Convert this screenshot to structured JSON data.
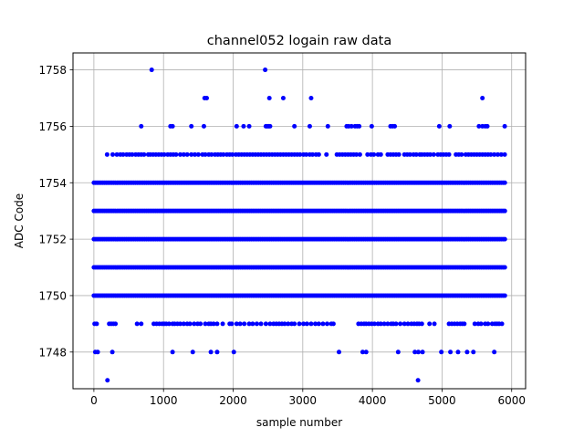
{
  "chart_data": {
    "type": "scatter",
    "title": "channel052 logain raw data",
    "xlabel": "sample number",
    "ylabel": "ADC Code",
    "xlim": [
      -300,
      6200
    ],
    "ylim": [
      1746.7,
      1758.6
    ],
    "xticks": [
      0,
      1000,
      2000,
      3000,
      4000,
      5000,
      6000
    ],
    "yticks": [
      1748,
      1750,
      1752,
      1754,
      1756,
      1758
    ],
    "grid": true,
    "marker_color": "#0000ff",
    "series": [
      {
        "n_samples": 5920,
        "dense_levels": [
          1750,
          1751,
          1752,
          1753,
          1754
        ],
        "sparse_points": {
          "1747": [
            195,
            4655
          ],
          "1748": [
            20,
            55,
            265,
            1130,
            1420,
            1680,
            1770,
            2010,
            3520,
            3860,
            3910,
            4370,
            4610,
            4660,
            4720,
            4990,
            5120,
            5230,
            5360,
            5450,
            5750
          ],
          "1749": [
            10,
            40,
            220,
            250,
            280,
            310,
            620,
            680,
            860,
            900,
            940,
            980,
            1010,
            1040,
            1080,
            1130,
            1160,
            1200,
            1240,
            1290,
            1340,
            1380,
            1440,
            1490,
            1530,
            1600,
            1650,
            1680,
            1720,
            1770,
            1850,
            1950,
            1980,
            2050,
            2100,
            2160,
            2230,
            2280,
            2340,
            2400,
            2470,
            2530,
            2580,
            2620,
            2660,
            2700,
            2740,
            2790,
            2840,
            2880,
            2950,
            3010,
            3060,
            3120,
            3180,
            3230,
            3290,
            3350,
            3410,
            3440,
            3800,
            3840,
            3880,
            3910,
            3950,
            3990,
            4030,
            4080,
            4120,
            4170,
            4220,
            4270,
            4300,
            4340,
            4400,
            4460,
            4510,
            4560,
            4600,
            4640,
            4670,
            4710,
            4820,
            4890,
            5100,
            5140,
            5180,
            5220,
            5260,
            5290,
            5320,
            5470,
            5520,
            5560,
            5620,
            5660,
            5720,
            5760,
            5790,
            5820,
            5860
          ],
          "1755": [
            190,
            270,
            330,
            380,
            420,
            470,
            510,
            550,
            600,
            640,
            680,
            720,
            780,
            810,
            850,
            890,
            930,
            970,
            1010,
            1060,
            1100,
            1140,
            1180,
            1240,
            1290,
            1340,
            1400,
            1450,
            1500,
            1560,
            1600,
            1650,
            1690,
            1740,
            1780,
            1820,
            1860,
            1910,
            1950,
            1990,
            2040,
            2080,
            2120,
            2160,
            2200,
            2240,
            2280,
            2320,
            2360,
            2400,
            2440,
            2480,
            2520,
            2560,
            2600,
            2640,
            2680,
            2720,
            2760,
            2800,
            2840,
            2880,
            2920,
            2960,
            3010,
            3050,
            3100,
            3140,
            3190,
            3230,
            3340,
            3490,
            3530,
            3570,
            3610,
            3650,
            3690,
            3730,
            3770,
            3820,
            3930,
            3980,
            4020,
            4080,
            4120,
            4220,
            4260,
            4300,
            4340,
            4380,
            4460,
            4500,
            4540,
            4590,
            4630,
            4680,
            4710,
            4750,
            4790,
            4830,
            4880,
            4940,
            4980,
            5020,
            5060,
            5100,
            5200,
            5240,
            5280,
            5340,
            5380,
            5420,
            5460,
            5500,
            5540,
            5580,
            5620,
            5660,
            5700,
            5750,
            5800,
            5850,
            5900
          ],
          "1756": [
            680,
            1100,
            1130,
            1400,
            1580,
            2050,
            2150,
            2230,
            2470,
            2490,
            2510,
            2530,
            2880,
            3100,
            3360,
            3630,
            3660,
            3700,
            3750,
            3780,
            3810,
            3990,
            4260,
            4290,
            4320,
            4960,
            5110,
            5530,
            5580,
            5620,
            5650,
            5900
          ],
          "1757": [
            1590,
            1620,
            2520,
            2720,
            3120,
            5580
          ],
          "1758": [
            830,
            2460
          ]
        }
      }
    ]
  }
}
